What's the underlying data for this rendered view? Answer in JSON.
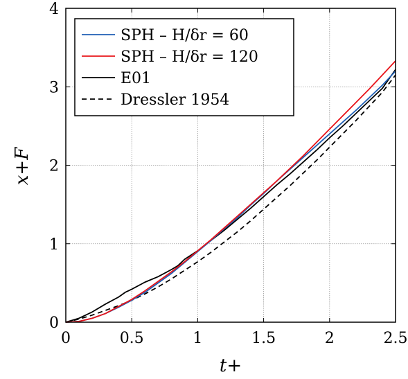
{
  "chart_data": {
    "type": "line",
    "title": "",
    "xlabel": "t+",
    "ylabel": "x+F",
    "xlim": [
      0,
      2.5
    ],
    "ylim": [
      0,
      4
    ],
    "xticks": [
      0,
      0.5,
      1,
      1.5,
      2,
      2.5
    ],
    "yticks": [
      0,
      1,
      2,
      3,
      4
    ],
    "xtick_labels": [
      "0",
      "0.5",
      "1",
      "1.5",
      "2",
      "2.5"
    ],
    "ytick_labels": [
      "0",
      "1",
      "2",
      "3",
      "4"
    ],
    "grid": true,
    "legend_position": "top-left",
    "series": [
      {
        "name": "SPH – H/δr = 60",
        "color": "#1f5fb4",
        "dash": "solid",
        "points": [
          [
            0.0,
            0.0
          ],
          [
            0.1,
            0.01
          ],
          [
            0.2,
            0.05
          ],
          [
            0.3,
            0.11
          ],
          [
            0.4,
            0.19
          ],
          [
            0.5,
            0.28
          ],
          [
            0.6,
            0.38
          ],
          [
            0.7,
            0.5
          ],
          [
            0.8,
            0.62
          ],
          [
            0.9,
            0.76
          ],
          [
            1.0,
            0.9
          ],
          [
            1.1,
            1.04
          ],
          [
            1.2,
            1.19
          ],
          [
            1.3,
            1.33
          ],
          [
            1.4,
            1.49
          ],
          [
            1.5,
            1.64
          ],
          [
            1.6,
            1.8
          ],
          [
            1.7,
            1.95
          ],
          [
            1.8,
            2.1
          ],
          [
            1.9,
            2.25
          ],
          [
            2.0,
            2.4
          ],
          [
            2.1,
            2.55
          ],
          [
            2.2,
            2.7
          ],
          [
            2.3,
            2.86
          ],
          [
            2.4,
            3.02
          ],
          [
            2.5,
            3.2
          ]
        ]
      },
      {
        "name": "SPH – H/δr = 120",
        "color": "#e8141a",
        "dash": "solid",
        "points": [
          [
            0.0,
            0.0
          ],
          [
            0.1,
            0.01
          ],
          [
            0.2,
            0.05
          ],
          [
            0.3,
            0.11
          ],
          [
            0.4,
            0.2
          ],
          [
            0.5,
            0.29
          ],
          [
            0.6,
            0.4
          ],
          [
            0.7,
            0.52
          ],
          [
            0.8,
            0.64
          ],
          [
            0.9,
            0.77
          ],
          [
            1.0,
            0.91
          ],
          [
            1.1,
            1.05
          ],
          [
            1.2,
            1.2
          ],
          [
            1.3,
            1.35
          ],
          [
            1.4,
            1.5
          ],
          [
            1.5,
            1.65
          ],
          [
            1.6,
            1.8
          ],
          [
            1.7,
            1.96
          ],
          [
            1.8,
            2.12
          ],
          [
            1.9,
            2.29
          ],
          [
            2.0,
            2.46
          ],
          [
            2.1,
            2.63
          ],
          [
            2.2,
            2.8
          ],
          [
            2.3,
            2.97
          ],
          [
            2.4,
            3.15
          ],
          [
            2.5,
            3.33
          ]
        ]
      },
      {
        "name": "E01",
        "color": "#000000",
        "dash": "solid",
        "points": [
          [
            0.0,
            0.0
          ],
          [
            0.1,
            0.05
          ],
          [
            0.2,
            0.13
          ],
          [
            0.3,
            0.23
          ],
          [
            0.4,
            0.32
          ],
          [
            0.45,
            0.38
          ],
          [
            0.5,
            0.42
          ],
          [
            0.6,
            0.51
          ],
          [
            0.7,
            0.58
          ],
          [
            0.8,
            0.67
          ],
          [
            0.85,
            0.72
          ],
          [
            0.9,
            0.8
          ],
          [
            1.0,
            0.91
          ],
          [
            1.1,
            1.04
          ],
          [
            1.2,
            1.17
          ],
          [
            1.3,
            1.31
          ],
          [
            1.4,
            1.45
          ],
          [
            1.5,
            1.6
          ],
          [
            1.6,
            1.75
          ],
          [
            1.7,
            1.89
          ],
          [
            1.8,
            2.04
          ],
          [
            1.9,
            2.19
          ],
          [
            2.0,
            2.35
          ],
          [
            2.1,
            2.5
          ],
          [
            2.2,
            2.66
          ],
          [
            2.3,
            2.82
          ],
          [
            2.4,
            2.98
          ],
          [
            2.5,
            3.22
          ]
        ]
      },
      {
        "name": "Dressler 1954",
        "color": "#000000",
        "dash": "dashed",
        "points": [
          [
            0.0,
            0.0
          ],
          [
            0.1,
            0.04
          ],
          [
            0.2,
            0.09
          ],
          [
            0.3,
            0.15
          ],
          [
            0.4,
            0.21
          ],
          [
            0.5,
            0.28
          ],
          [
            0.6,
            0.36
          ],
          [
            0.7,
            0.45
          ],
          [
            0.8,
            0.55
          ],
          [
            0.9,
            0.66
          ],
          [
            1.0,
            0.77
          ],
          [
            1.1,
            0.89
          ],
          [
            1.2,
            1.02
          ],
          [
            1.3,
            1.15
          ],
          [
            1.4,
            1.29
          ],
          [
            1.5,
            1.44
          ],
          [
            1.6,
            1.59
          ],
          [
            1.7,
            1.74
          ],
          [
            1.8,
            1.9
          ],
          [
            1.9,
            2.06
          ],
          [
            2.0,
            2.23
          ],
          [
            2.1,
            2.4
          ],
          [
            2.2,
            2.57
          ],
          [
            2.3,
            2.75
          ],
          [
            2.4,
            2.93
          ],
          [
            2.5,
            3.15
          ]
        ]
      }
    ]
  }
}
